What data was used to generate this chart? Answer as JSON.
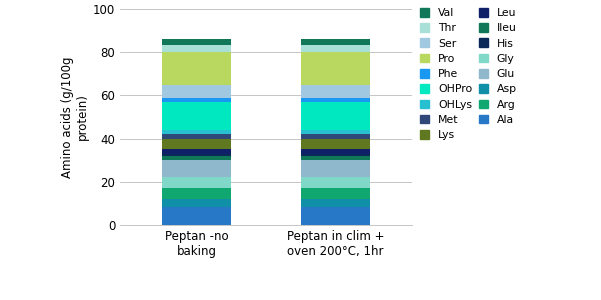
{
  "categories": [
    "Peptan -no\nbaking",
    "Peptan in clim +\noven 200°C, 1hr"
  ],
  "stack_order": [
    "Ala",
    "Asp",
    "Arg",
    "Gly",
    "Glu",
    "Ileu",
    "His",
    "Leu",
    "Lys",
    "Met",
    "OHLys",
    "OHPro",
    "Phe",
    "Ser",
    "Pro",
    "Thr",
    "Val"
  ],
  "colors": {
    "Ala": "#2878c8",
    "Asp": "#1090a8",
    "Arg": "#10a870",
    "Gly": "#80d8c8",
    "Glu": "#90b8cc",
    "Ileu": "#107858",
    "His": "#0a2858",
    "Leu": "#102068",
    "Lys": "#607820",
    "Met": "#304878",
    "OHLys": "#28c0d0",
    "OHPro": "#00e8c0",
    "Phe": "#1898f0",
    "Ser": "#a0c8e0",
    "Pro": "#b8d860",
    "Thr": "#a8e0d8",
    "Val": "#107858"
  },
  "values_bar1": {
    "Ala": 8.5,
    "Asp": 3.5,
    "Arg": 5.0,
    "Gly": 5.0,
    "Glu": 8.0,
    "Ileu": 2.0,
    "His": 1.0,
    "Leu": 2.0,
    "Lys": 5.0,
    "Met": 2.0,
    "OHLys": 2.0,
    "OHPro": 13.0,
    "Phe": 2.0,
    "Ser": 6.0,
    "Pro": 15.0,
    "Thr": 3.5,
    "Val": 2.5
  },
  "values_bar2": {
    "Ala": 8.5,
    "Asp": 3.5,
    "Arg": 5.0,
    "Gly": 5.0,
    "Glu": 8.0,
    "Ileu": 2.0,
    "His": 1.0,
    "Leu": 2.0,
    "Lys": 5.0,
    "Met": 2.0,
    "OHLys": 2.0,
    "OHPro": 13.0,
    "Phe": 2.0,
    "Ser": 6.0,
    "Pro": 15.0,
    "Thr": 3.5,
    "Val": 2.5
  },
  "ylabel": "Amino acids (g/100g\nprotein)",
  "ylim": [
    0,
    100
  ],
  "yticks": [
    0,
    20,
    40,
    60,
    80,
    100
  ],
  "legend_order": [
    "Val",
    "Thr",
    "Ser",
    "Pro",
    "Phe",
    "OHPro",
    "OHLys",
    "Met",
    "Lys",
    "Leu",
    "Ileu",
    "His",
    "Gly",
    "Glu",
    "Asp",
    "Arg",
    "Ala"
  ],
  "bar_width": 0.5
}
